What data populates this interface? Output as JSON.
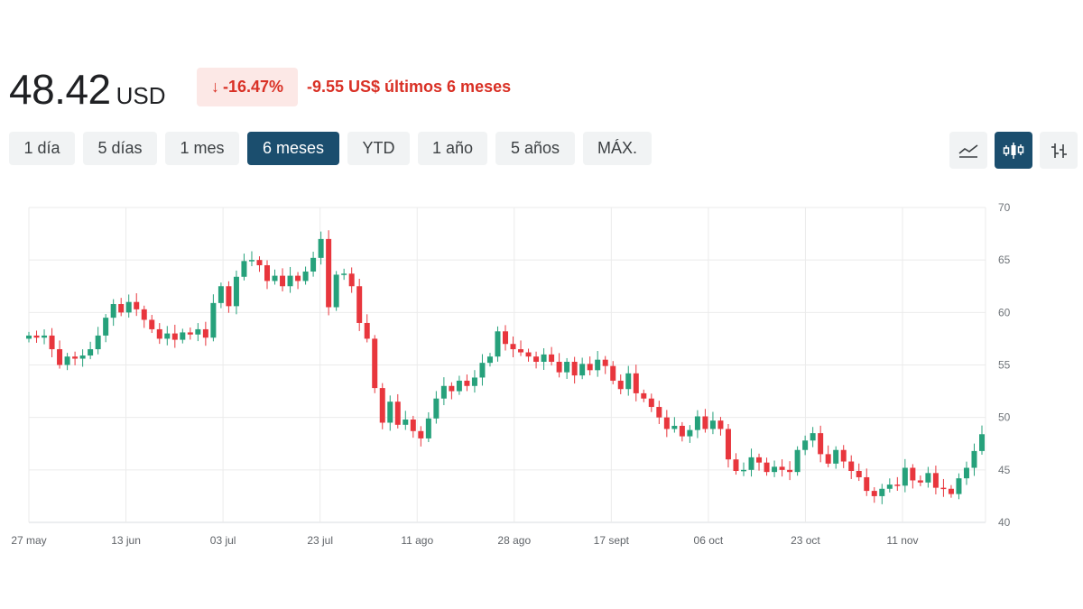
{
  "header": {
    "price": "48.42",
    "currency": "USD",
    "change_pct": "-16.47%",
    "change_pct_arrow": "↓",
    "change_abs": "-9.55 US$ últimos 6 meses"
  },
  "ranges": [
    {
      "label": "1 día",
      "active": false
    },
    {
      "label": "5 días",
      "active": false
    },
    {
      "label": "1 mes",
      "active": false
    },
    {
      "label": "6 meses",
      "active": true
    },
    {
      "label": "YTD",
      "active": false
    },
    {
      "label": "1 año",
      "active": false
    },
    {
      "label": "5 años",
      "active": false
    },
    {
      "label": "MÁX.",
      "active": false
    }
  ],
  "view_buttons": [
    {
      "icon": "line-chart-icon",
      "active": false
    },
    {
      "icon": "candlestick-icon",
      "active": true
    },
    {
      "icon": "ohlc-bars-icon",
      "active": false
    }
  ],
  "colors": {
    "up": "#26a17b",
    "down": "#e8363d",
    "accent": "#1b4e6e",
    "negative_text": "#d93025"
  },
  "chart_data": {
    "type": "candlestick",
    "y_axis_position": "right",
    "ylim": [
      40,
      70
    ],
    "yticks": [
      40,
      45,
      50,
      55,
      60,
      65,
      70
    ],
    "grid": true,
    "x_tick_labels": [
      "27 may",
      "13 jun",
      "03 jul",
      "23 jul",
      "11 ago",
      "28 ago",
      "17 sept",
      "06 oct",
      "23 oct",
      "11 nov"
    ],
    "close_series": [
      57.8,
      57.6,
      57.8,
      56.5,
      55.0,
      55.8,
      55.6,
      55.9,
      56.5,
      57.8,
      59.5,
      60.8,
      60.0,
      61.0,
      60.3,
      59.3,
      58.4,
      57.5,
      58.0,
      57.4,
      58.1,
      57.9,
      58.4,
      57.6,
      60.9,
      62.5,
      60.6,
      63.4,
      64.9,
      65.0,
      64.5,
      63.0,
      63.5,
      62.5,
      63.5,
      63.0,
      63.9,
      65.2,
      67.0,
      60.5,
      63.6,
      63.7,
      62.5,
      59.0,
      57.5,
      52.8,
      49.5,
      51.5,
      49.3,
      49.8,
      48.7,
      48.0,
      49.9,
      51.8,
      53.0,
      52.5,
      53.5,
      53.0,
      53.8,
      55.2,
      55.8,
      58.2,
      57.0,
      56.5,
      56.2,
      55.8,
      55.3,
      56.0,
      55.3,
      54.3,
      55.3,
      54.0,
      55.1,
      54.5,
      55.5,
      54.9,
      53.5,
      52.7,
      54.2,
      52.3,
      51.8,
      51.0,
      50.0,
      48.9,
      49.2,
      48.2,
      48.8,
      50.1,
      48.9,
      49.7,
      48.9,
      46.0,
      44.9,
      45.0,
      46.2,
      45.7,
      44.8,
      45.3,
      45.0,
      44.8,
      46.9,
      47.8,
      48.5,
      46.5,
      45.6,
      46.9,
      45.8,
      44.9,
      44.3,
      43.0,
      42.5,
      43.2,
      43.6,
      43.5,
      45.2,
      44.0,
      43.8,
      44.7,
      43.3,
      43.2,
      42.7,
      44.2,
      45.2,
      46.8,
      48.4
    ]
  }
}
